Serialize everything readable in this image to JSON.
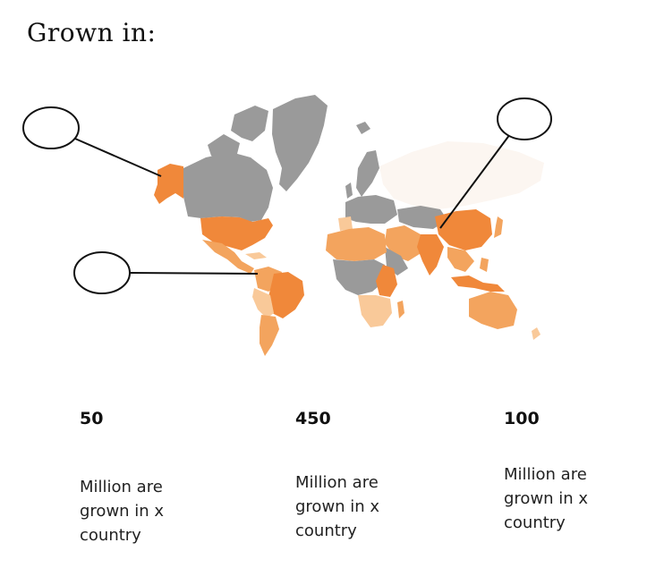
{
  "title": "Grown in:",
  "colors": {
    "dark_orange": "#f0883a",
    "medium_orange": "#f3a45e",
    "light_orange": "#f9c999",
    "pale_orange": "#fde6d2",
    "no_data_gray": "#9a9a9a",
    "very_pale": "#fcf6f1",
    "callout_line": "#111111"
  },
  "stats": [
    {
      "value": "50",
      "description": "Million are\ngrown in x\ncountry"
    },
    {
      "value": "450",
      "description": "Million are\ngrown in x\ncountry"
    },
    {
      "value": "100",
      "description": "Million are\ngrown in x\ncountry"
    }
  ]
}
